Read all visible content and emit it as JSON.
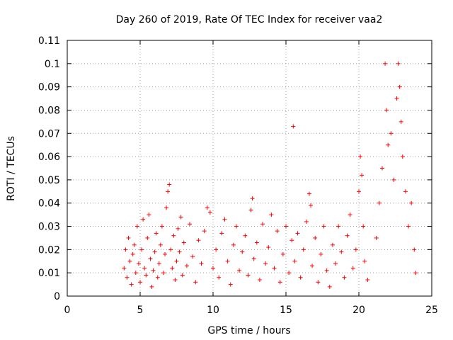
{
  "chart_data": {
    "type": "scatter",
    "title": "Day 260 of 2019, Rate Of TEC Index for receiver vaa2",
    "xlabel": "GPS time / hours",
    "ylabel": "ROTI / TECUs",
    "xlim": [
      0,
      25
    ],
    "ylim": [
      0,
      0.11
    ],
    "xticks": [
      "0",
      "5",
      "10",
      "15",
      "20",
      "25"
    ],
    "yticks": [
      "0",
      "0.01",
      "0.02",
      "0.03",
      "0.04",
      "0.05",
      "0.06",
      "0.07",
      "0.08",
      "0.09",
      "0.1",
      "0.11"
    ],
    "grid": true,
    "marker": "+",
    "color": "#ff0000",
    "series": [
      {
        "points": [
          [
            3.9,
            0.012
          ],
          [
            4.0,
            0.02
          ],
          [
            4.1,
            0.008
          ],
          [
            4.2,
            0.025
          ],
          [
            4.3,
            0.015
          ],
          [
            4.4,
            0.005
          ],
          [
            4.5,
            0.018
          ],
          [
            4.6,
            0.022
          ],
          [
            4.7,
            0.01
          ],
          [
            4.8,
            0.03
          ],
          [
            4.9,
            0.014
          ],
          [
            5.0,
            0.006
          ],
          [
            5.1,
            0.02
          ],
          [
            5.2,
            0.033
          ],
          [
            5.3,
            0.012
          ],
          [
            5.4,
            0.009
          ],
          [
            5.5,
            0.025
          ],
          [
            5.6,
            0.035
          ],
          [
            5.7,
            0.016
          ],
          [
            5.8,
            0.004
          ],
          [
            5.9,
            0.011
          ],
          [
            6.0,
            0.019
          ],
          [
            6.1,
            0.027
          ],
          [
            6.2,
            0.008
          ],
          [
            6.3,
            0.014
          ],
          [
            6.4,
            0.022
          ],
          [
            6.5,
            0.03
          ],
          [
            6.6,
            0.01
          ],
          [
            6.7,
            0.018
          ],
          [
            6.8,
            0.038
          ],
          [
            6.9,
            0.045
          ],
          [
            7.0,
            0.048
          ],
          [
            7.1,
            0.02
          ],
          [
            7.2,
            0.012
          ],
          [
            7.3,
            0.026
          ],
          [
            7.4,
            0.007
          ],
          [
            7.5,
            0.015
          ],
          [
            7.6,
            0.029
          ],
          [
            7.7,
            0.019
          ],
          [
            7.8,
            0.034
          ],
          [
            7.9,
            0.009
          ],
          [
            8.0,
            0.023
          ],
          [
            8.2,
            0.013
          ],
          [
            8.4,
            0.031
          ],
          [
            8.6,
            0.017
          ],
          [
            8.8,
            0.006
          ],
          [
            9.0,
            0.024
          ],
          [
            9.2,
            0.014
          ],
          [
            9.4,
            0.028
          ],
          [
            9.6,
            0.038
          ],
          [
            9.8,
            0.036
          ],
          [
            10.0,
            0.012
          ],
          [
            10.2,
            0.02
          ],
          [
            10.4,
            0.008
          ],
          [
            10.6,
            0.027
          ],
          [
            10.8,
            0.033
          ],
          [
            11.0,
            0.015
          ],
          [
            11.2,
            0.005
          ],
          [
            11.4,
            0.022
          ],
          [
            11.6,
            0.03
          ],
          [
            11.8,
            0.011
          ],
          [
            12.0,
            0.019
          ],
          [
            12.2,
            0.026
          ],
          [
            12.4,
            0.009
          ],
          [
            12.6,
            0.037
          ],
          [
            12.7,
            0.042
          ],
          [
            12.8,
            0.016
          ],
          [
            13.0,
            0.023
          ],
          [
            13.2,
            0.007
          ],
          [
            13.4,
            0.031
          ],
          [
            13.6,
            0.014
          ],
          [
            13.8,
            0.021
          ],
          [
            14.0,
            0.035
          ],
          [
            14.2,
            0.012
          ],
          [
            14.4,
            0.028
          ],
          [
            14.6,
            0.006
          ],
          [
            14.8,
            0.018
          ],
          [
            15.0,
            0.03
          ],
          [
            15.2,
            0.01
          ],
          [
            15.4,
            0.024
          ],
          [
            15.5,
            0.073
          ],
          [
            15.6,
            0.015
          ],
          [
            15.8,
            0.027
          ],
          [
            16.0,
            0.008
          ],
          [
            16.2,
            0.02
          ],
          [
            16.4,
            0.032
          ],
          [
            16.6,
            0.044
          ],
          [
            16.7,
            0.039
          ],
          [
            16.8,
            0.013
          ],
          [
            17.0,
            0.025
          ],
          [
            17.2,
            0.006
          ],
          [
            17.4,
            0.018
          ],
          [
            17.6,
            0.03
          ],
          [
            17.8,
            0.011
          ],
          [
            18.0,
            0.004
          ],
          [
            18.2,
            0.022
          ],
          [
            18.4,
            0.014
          ],
          [
            18.6,
            0.03
          ],
          [
            18.8,
            0.019
          ],
          [
            19.0,
            0.008
          ],
          [
            19.2,
            0.026
          ],
          [
            19.4,
            0.035
          ],
          [
            19.6,
            0.012
          ],
          [
            19.8,
            0.02
          ],
          [
            20.0,
            0.045
          ],
          [
            20.1,
            0.06
          ],
          [
            20.2,
            0.052
          ],
          [
            20.3,
            0.03
          ],
          [
            20.4,
            0.015
          ],
          [
            20.6,
            0.007
          ],
          [
            21.2,
            0.025
          ],
          [
            21.4,
            0.04
          ],
          [
            21.6,
            0.055
          ],
          [
            21.8,
            0.1
          ],
          [
            21.9,
            0.08
          ],
          [
            22.0,
            0.065
          ],
          [
            22.2,
            0.07
          ],
          [
            22.4,
            0.05
          ],
          [
            22.6,
            0.085
          ],
          [
            22.7,
            0.1
          ],
          [
            22.8,
            0.09
          ],
          [
            22.9,
            0.075
          ],
          [
            23.0,
            0.06
          ],
          [
            23.2,
            0.045
          ],
          [
            23.4,
            0.03
          ],
          [
            23.6,
            0.04
          ],
          [
            23.8,
            0.02
          ],
          [
            23.9,
            0.01
          ]
        ]
      }
    ]
  }
}
